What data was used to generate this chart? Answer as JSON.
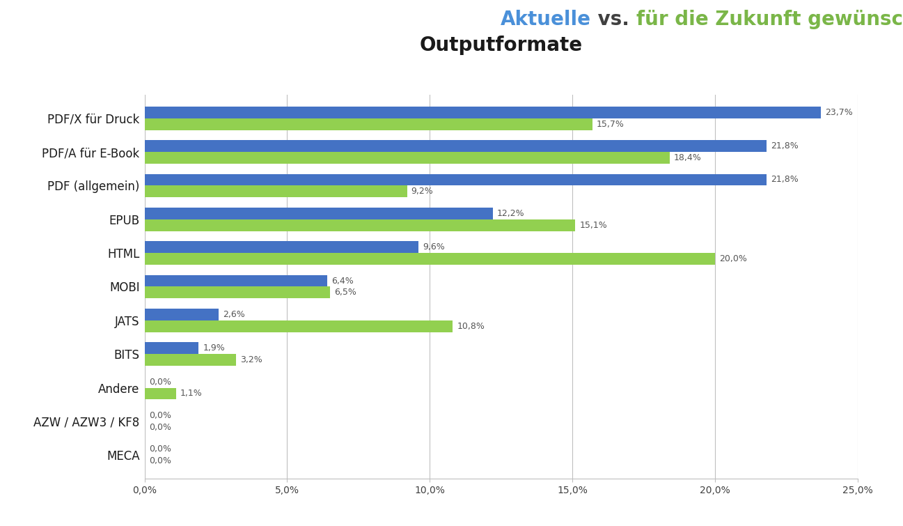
{
  "title_line1_parts": [
    {
      "text": "Aktuelle",
      "color": "#4A90D9",
      "weight": "bold"
    },
    {
      "text": " vs. ",
      "color": "#404040",
      "weight": "bold"
    },
    {
      "text": "für die Zukunft gewünschte",
      "color": "#7AB648",
      "weight": "bold"
    }
  ],
  "title_line2": "Outputformate",
  "categories": [
    "PDF/X für Druck",
    "PDF/A für E-Book",
    "PDF (allgemein)",
    "EPUB",
    "HTML",
    "MOBI",
    "JATS",
    "BITS",
    "Andere",
    "AZW / AZW3 / KF8",
    "MECA"
  ],
  "blue_values": [
    23.7,
    21.8,
    21.8,
    12.2,
    9.6,
    6.4,
    2.6,
    1.9,
    0.0,
    0.0,
    0.0
  ],
  "green_values": [
    15.7,
    18.4,
    9.2,
    15.1,
    20.0,
    6.5,
    10.8,
    3.2,
    1.1,
    0.0,
    0.0
  ],
  "blue_color": "#4472C4",
  "green_color": "#92D050",
  "bar_height": 0.35,
  "xlim": [
    0,
    25.0
  ],
  "xticks": [
    0,
    5.0,
    10.0,
    15.0,
    20.0,
    25.0
  ],
  "xtick_labels": [
    "0,0%",
    "5,0%",
    "10,0%",
    "15,0%",
    "20,0%",
    "25,0%"
  ],
  "background_color": "#FFFFFF",
  "grid_color": "#BFBFBF",
  "label_fontsize": 9,
  "category_fontsize": 12,
  "title_fontsize_line1": 20,
  "title_fontsize_line2": 20
}
